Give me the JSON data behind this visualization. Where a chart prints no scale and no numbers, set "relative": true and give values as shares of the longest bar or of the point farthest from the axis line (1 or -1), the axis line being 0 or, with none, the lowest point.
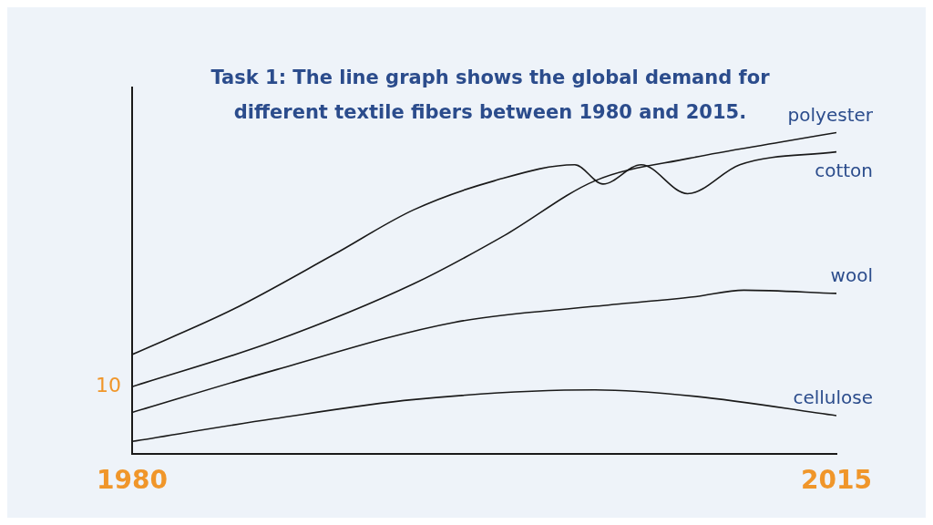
{
  "chart_data": {
    "type": "line",
    "title": "Task 1: The line graph shows the global demand for different textile fibers between 1980 and 2015.",
    "relative": true,
    "xlim": [
      1980,
      2015
    ],
    "xticks": [
      1980,
      2015
    ],
    "legend": false,
    "grid": false,
    "annotations": [
      {
        "text": "10",
        "x": 1980,
        "y": 0.21
      }
    ],
    "series": [
      {
        "name": "polyester",
        "color": "#1a1a1a",
        "x": [
          1980,
          1987,
          1994,
          1998.5,
          2003,
          2007.7,
          2012.2,
          2015
        ],
        "values": [
          0.21,
          0.35,
          0.53,
          0.68,
          0.85,
          0.92,
          0.97,
          1.0
        ]
      },
      {
        "name": "cotton",
        "color": "#1a1a1a",
        "x": [
          1980,
          1985,
          1990,
          1994,
          1998,
          2002,
          2003.4,
          2005.3,
          2007.6,
          2010.2,
          2015
        ],
        "values": [
          0.31,
          0.45,
          0.62,
          0.76,
          0.85,
          0.9,
          0.84,
          0.9,
          0.81,
          0.9,
          0.94
        ]
      },
      {
        "name": "wool",
        "color": "#1a1a1a",
        "x": [
          1980,
          1987,
          1996,
          2003,
          2008,
          2010.4,
          2015
        ],
        "values": [
          0.13,
          0.26,
          0.41,
          0.46,
          0.49,
          0.51,
          0.5
        ]
      },
      {
        "name": "cellulose",
        "color": "#1a1a1a",
        "x": [
          1980,
          1987,
          1994,
          2003,
          2008,
          2015
        ],
        "values": [
          0.04,
          0.11,
          0.17,
          0.2,
          0.18,
          0.12
        ]
      }
    ]
  }
}
